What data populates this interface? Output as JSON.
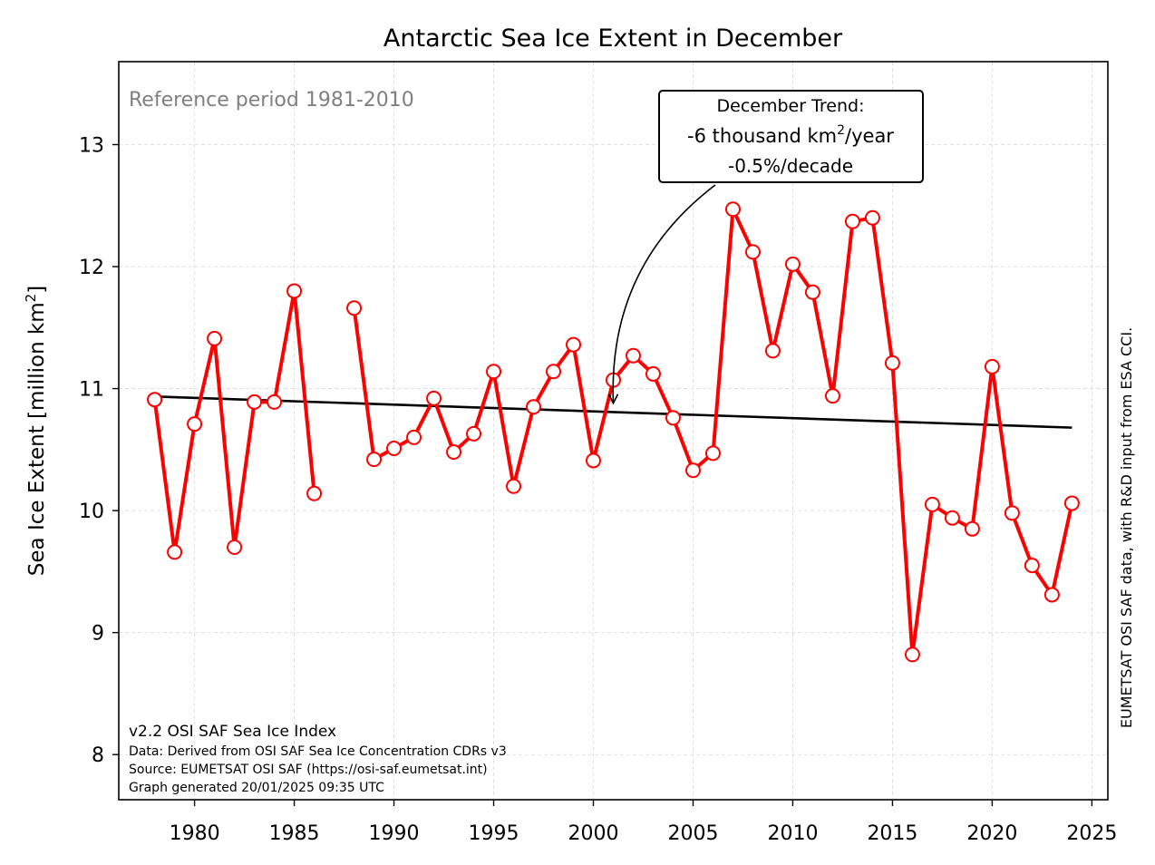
{
  "chart_data": {
    "type": "line",
    "title": "Antarctic Sea Ice Extent in December",
    "ylabel_main": "Sea Ice Extent [million km",
    "ylabel_sup": "2",
    "ylabel_end": "]",
    "xlim": [
      1976.2,
      2025.8
    ],
    "ylim": [
      7.63,
      13.68
    ],
    "xticks": [
      1980,
      1985,
      1990,
      1995,
      2000,
      2005,
      2010,
      2015,
      2020,
      2025
    ],
    "yticks": [
      8,
      9,
      10,
      11,
      12,
      13
    ],
    "grid": true,
    "reference_text": "Reference period 1981-2010",
    "trend_box": {
      "line1": "December Trend:",
      "line2_main": "-6 thousand km",
      "line2_sup": "2",
      "line2_end": "/year",
      "line3": "-0.5%/decade",
      "arrow_target": [
        2001,
        10.85
      ]
    },
    "right_side_text": "EUMETSAT OSI SAF data, with R&D input from ESA CCI.",
    "footer": [
      "v2.2 OSI SAF Sea Ice Index",
      "Data: Derived from OSI SAF Sea Ice Concentration CDRs v3",
      "Source: EUMETSAT OSI SAF (https://osi-saf.eumetsat.int)",
      "Graph generated 20/01/2025 09:35 UTC"
    ],
    "series": [
      {
        "color": "#ff0000",
        "x": [
          1978,
          1979,
          1980,
          1981,
          1982,
          1983,
          1984,
          1985,
          1986,
          1987,
          1988,
          1989,
          1990,
          1991,
          1992,
          1993,
          1994,
          1995,
          1996,
          1997,
          1998,
          1999,
          2000,
          2001,
          2002,
          2003,
          2004,
          2005,
          2006,
          2007,
          2008,
          2009,
          2010,
          2011,
          2012,
          2013,
          2014,
          2015,
          2016,
          2017,
          2018,
          2019,
          2020,
          2021,
          2022,
          2023,
          2024
        ],
        "values": [
          10.91,
          9.66,
          10.71,
          11.41,
          9.7,
          10.89,
          10.89,
          11.8,
          10.14,
          null,
          11.66,
          10.42,
          10.51,
          10.6,
          10.92,
          10.48,
          10.63,
          11.14,
          10.2,
          10.85,
          11.14,
          11.36,
          10.41,
          11.07,
          11.27,
          11.12,
          10.76,
          10.33,
          10.47,
          12.47,
          12.12,
          11.31,
          12.02,
          11.79,
          10.94,
          12.37,
          12.4,
          11.21,
          8.82,
          10.05,
          9.94,
          9.85,
          11.18,
          9.98,
          9.55,
          9.31,
          10.06
        ]
      },
      {
        "color": "#000000",
        "x": [
          1978,
          2024
        ],
        "values": [
          10.935,
          10.68
        ]
      }
    ]
  }
}
